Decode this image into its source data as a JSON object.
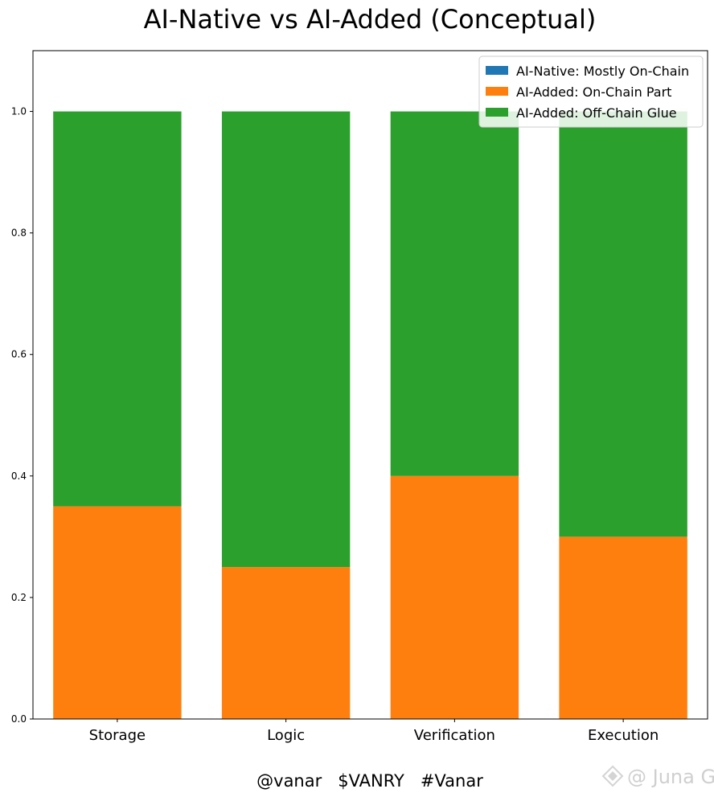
{
  "chart_data": {
    "type": "bar",
    "stacked": true,
    "title": "AI-Native vs AI-Added (Conceptual)",
    "xlabel": "",
    "ylabel": "",
    "categories": [
      "Storage",
      "Logic",
      "Verification",
      "Execution"
    ],
    "series": [
      {
        "name": "AI-Native: Mostly On-Chain",
        "color": "#1f77b4",
        "values": [
          0,
          0,
          0,
          0
        ]
      },
      {
        "name": "AI-Added: On-Chain Part",
        "color": "#ff7f0e",
        "values": [
          0.35,
          0.25,
          0.4,
          0.3
        ]
      },
      {
        "name": "AI-Added: Off-Chain Glue",
        "color": "#2ca02c",
        "values": [
          0.65,
          0.75,
          0.6,
          0.7
        ]
      }
    ],
    "ylim": [
      0,
      1.1
    ],
    "yticks": [
      "0.0",
      "0.2",
      "0.4",
      "0.6",
      "0.8",
      "1.0"
    ],
    "grid": false,
    "legend_position": "top-right"
  },
  "footer": {
    "tags": "@vanar   $VANRY   #Vanar",
    "watermark": "@ Juna G"
  }
}
